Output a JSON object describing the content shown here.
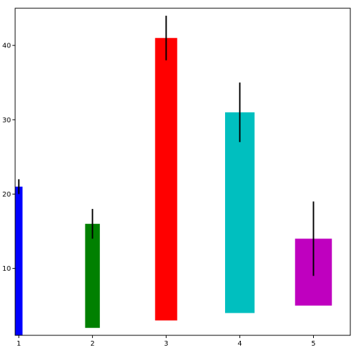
{
  "chart_data": {
    "type": "bar",
    "categories": [
      "1",
      "2",
      "3",
      "4",
      "5"
    ],
    "bars": [
      {
        "x": 1,
        "bottom": 0,
        "top": 21,
        "err_low": 20,
        "err_high": 22,
        "color": "#0000ff"
      },
      {
        "x": 2,
        "bottom": 2,
        "top": 16,
        "err_low": 14,
        "err_high": 18,
        "color": "#008000"
      },
      {
        "x": 3,
        "bottom": 3,
        "top": 41,
        "err_low": 38,
        "err_high": 44,
        "color": "#ff0000"
      },
      {
        "x": 4,
        "bottom": 4,
        "top": 31,
        "err_low": 27,
        "err_high": 35,
        "color": "#00bfbf"
      },
      {
        "x": 5,
        "bottom": 5,
        "top": 14,
        "err_low": 9,
        "err_high": 19,
        "color": "#bf00bf"
      }
    ],
    "bar_width_data": [
      0.1,
      0.2,
      0.3,
      0.4,
      0.5
    ],
    "x_ticks": [
      "1",
      "2",
      "3",
      "4",
      "5"
    ],
    "y_ticks": [
      "10",
      "20",
      "30",
      "40"
    ],
    "xlim": [
      0.95,
      5.5
    ],
    "ylim": [
      1,
      45
    ],
    "title": "",
    "xlabel": "",
    "ylabel": "",
    "grid": false,
    "error_color": "#000000"
  }
}
